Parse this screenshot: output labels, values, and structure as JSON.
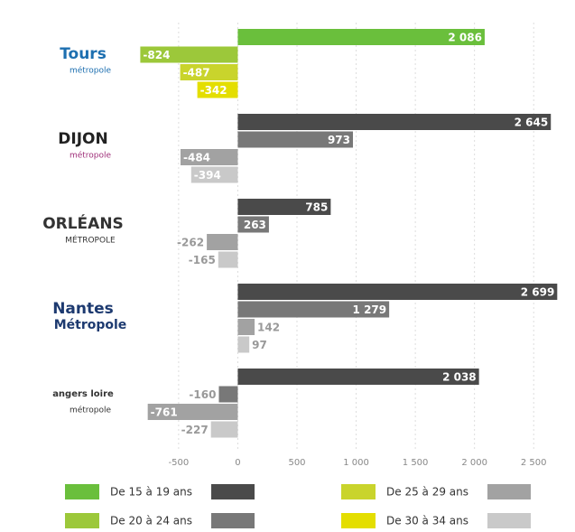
{
  "chart_data": {
    "type": "bar",
    "orientation": "horizontal",
    "categories": [
      "Tours",
      "DIJON",
      "ORLÉANS",
      "Nantes",
      "angers loire"
    ],
    "category_subtitles": [
      "métropole",
      "métropole",
      "MÉTROPOLE",
      "Métropole",
      "métropole"
    ],
    "series": [
      {
        "name": "De 15 à 19 ans",
        "colors": [
          "#6abf3c",
          "#4a4a4a",
          "#4a4a4a",
          "#4a4a4a",
          "#4a4a4a"
        ],
        "values": [
          2086,
          2645,
          785,
          2699,
          2038
        ],
        "value_labels": [
          "2 086",
          "2 645",
          "785",
          "2 699",
          "2 038"
        ]
      },
      {
        "name": "De 20 à 24 ans",
        "colors": [
          "#9cc83a",
          "#787878",
          "#787878",
          "#787878",
          "#787878"
        ],
        "values": [
          -824,
          973,
          263,
          1279,
          -160
        ],
        "value_labels": [
          "-824",
          "973",
          "263",
          "1 279",
          "-160"
        ]
      },
      {
        "name": "De 25 à 29 ans",
        "colors": [
          "#c9d42c",
          "#a2a2a2",
          "#a2a2a2",
          "#a2a2a2",
          "#a2a2a2"
        ],
        "values": [
          -487,
          -484,
          -262,
          142,
          -761
        ],
        "value_labels": [
          "-487",
          "-484",
          "-262",
          "142",
          "-761"
        ]
      },
      {
        "name": "De 30 à 34 ans",
        "colors": [
          "#e4de00",
          "#c9c9c9",
          "#c9c9c9",
          "#c9c9c9",
          "#c9c9c9"
        ],
        "values": [
          -342,
          -394,
          -165,
          97,
          -227
        ],
        "value_labels": [
          "-342",
          "-394",
          "-165",
          "97",
          "-227"
        ]
      }
    ],
    "xlim": [
      -850,
      2750
    ],
    "xticks": [
      -500,
      0,
      500,
      {
        "value": 1000,
        "label": "1 000"
      },
      {
        "value": 1500,
        "label": "1 500"
      },
      {
        "value": 2000,
        "label": "2 000"
      },
      {
        "value": 2500,
        "label": "2 500"
      }
    ],
    "grid": true
  }
}
